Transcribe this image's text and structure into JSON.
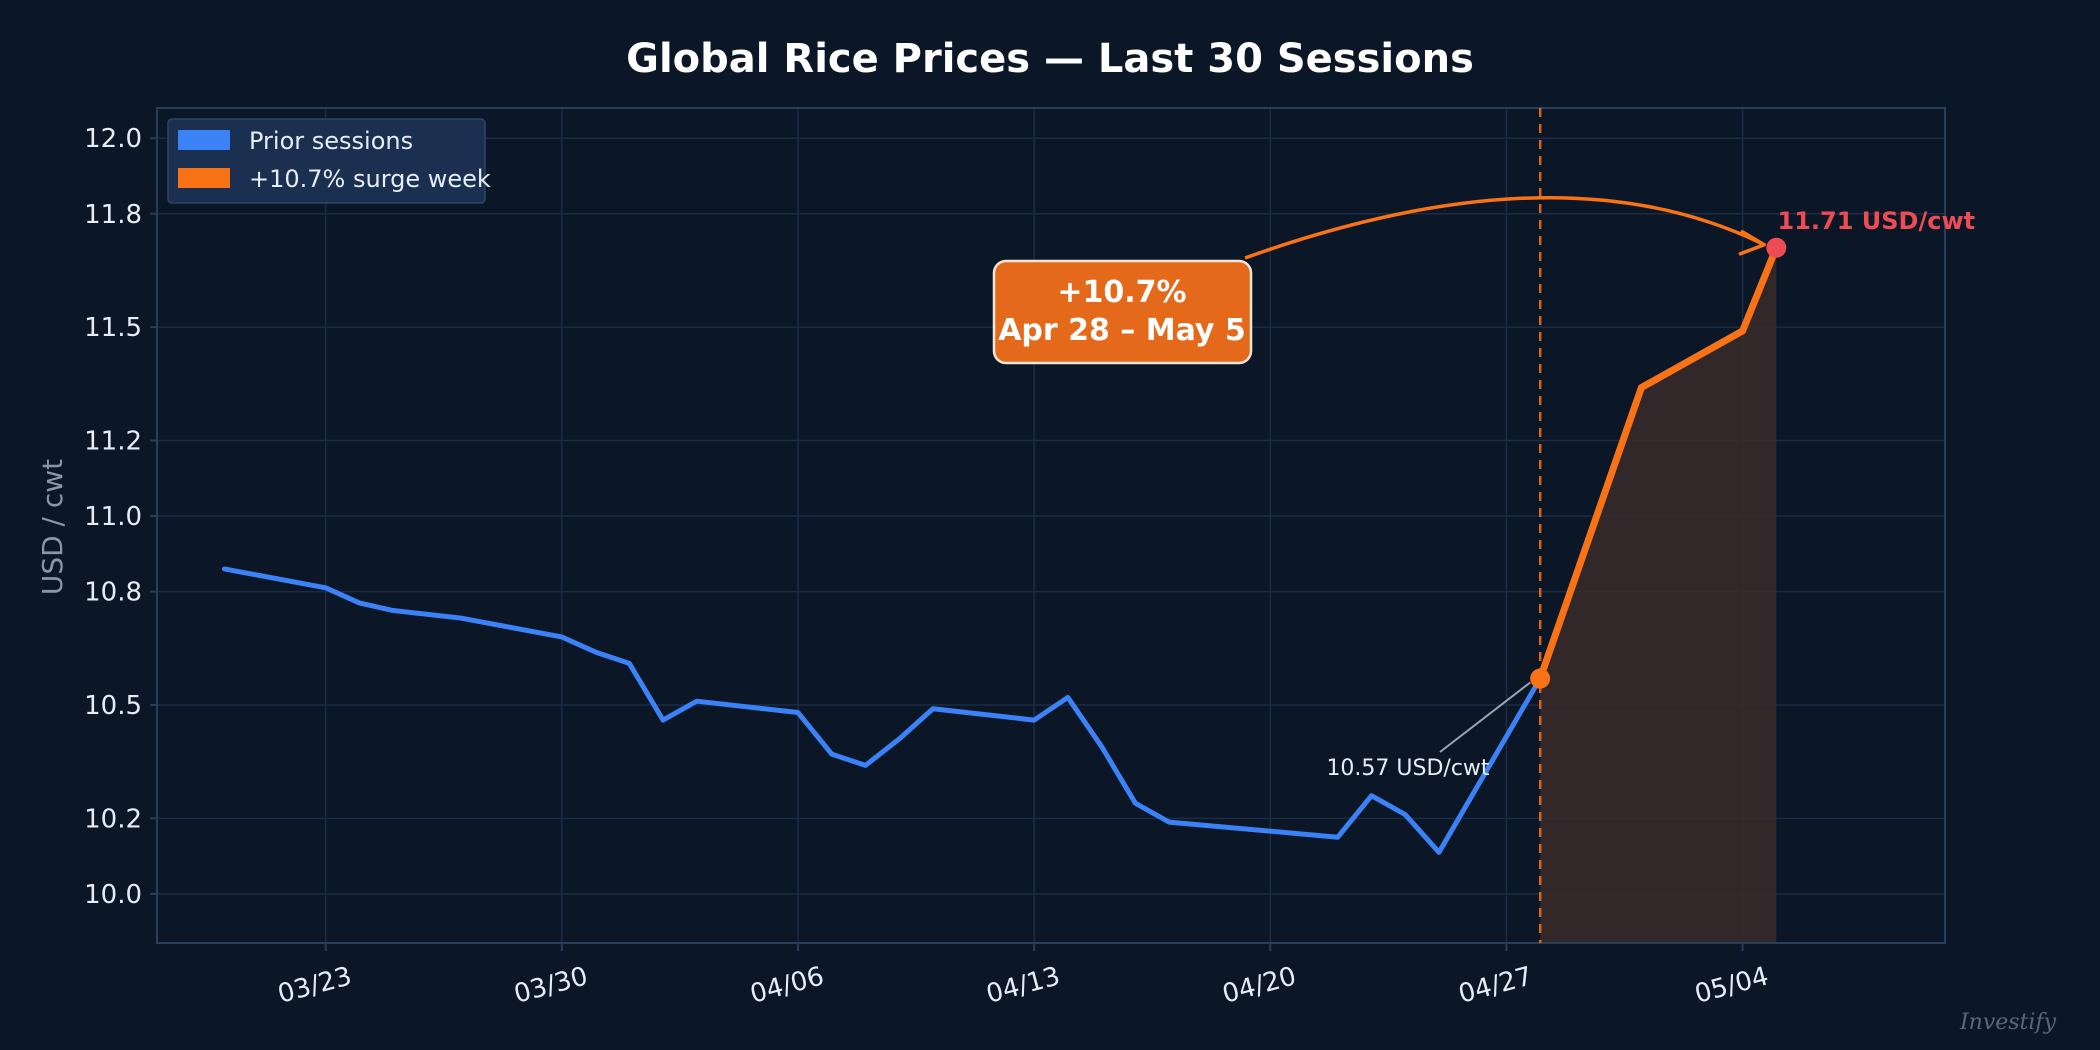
{
  "chart_data": {
    "type": "line",
    "title": "Global Rice Prices — Last 30 Sessions",
    "ylabel": "USD / cwt",
    "xlabel": "",
    "ylim": [
      9.87,
      12.08
    ],
    "yticks": [
      10.0,
      10.2,
      10.5,
      10.8,
      11.0,
      11.2,
      11.5,
      11.8,
      12.0
    ],
    "ytick_labels": [
      "10.0",
      "10.2",
      "10.5",
      "10.8",
      "11.0",
      "11.2",
      "11.5",
      "11.8",
      "12.0"
    ],
    "xlim": [
      "2024-03-18",
      "2024-05-10"
    ],
    "xticks": [
      "2024-03-23",
      "2024-03-30",
      "2024-04-06",
      "2024-04-13",
      "2024-04-20",
      "2024-04-27",
      "2024-05-04"
    ],
    "xtick_labels": [
      "03/23",
      "03/30",
      "04/06",
      "04/13",
      "04/20",
      "04/27",
      "05/04"
    ],
    "grid": true,
    "legend_position": "top-left",
    "legend": [
      "Prior sessions",
      "+10.7% surge week"
    ],
    "series": [
      {
        "name": "Prior sessions",
        "color": "#3b82f6",
        "points": [
          {
            "x": "2024-03-20",
            "y": 10.86
          },
          {
            "x": "2024-03-23",
            "y": 10.81
          },
          {
            "x": "2024-03-24",
            "y": 10.77
          },
          {
            "x": "2024-03-25",
            "y": 10.75
          },
          {
            "x": "2024-03-27",
            "y": 10.73
          },
          {
            "x": "2024-03-30",
            "y": 10.68
          },
          {
            "x": "2024-03-31",
            "y": 10.64
          },
          {
            "x": "2024-04-01",
            "y": 10.61
          },
          {
            "x": "2024-04-02",
            "y": 10.46
          },
          {
            "x": "2024-04-03",
            "y": 10.51
          },
          {
            "x": "2024-04-06",
            "y": 10.48
          },
          {
            "x": "2024-04-07",
            "y": 10.37
          },
          {
            "x": "2024-04-08",
            "y": 10.34
          },
          {
            "x": "2024-04-09",
            "y": 10.41
          },
          {
            "x": "2024-04-10",
            "y": 10.49
          },
          {
            "x": "2024-04-13",
            "y": 10.46
          },
          {
            "x": "2024-04-14",
            "y": 10.52
          },
          {
            "x": "2024-04-15",
            "y": 10.39
          },
          {
            "x": "2024-04-16",
            "y": 10.24
          },
          {
            "x": "2024-04-17",
            "y": 10.19
          },
          {
            "x": "2024-04-22",
            "y": 10.15
          },
          {
            "x": "2024-04-23",
            "y": 10.26
          },
          {
            "x": "2024-04-24",
            "y": 10.21
          },
          {
            "x": "2024-04-25",
            "y": 10.11
          },
          {
            "x": "2024-04-28",
            "y": 10.57
          }
        ]
      },
      {
        "name": "+10.7% surge week",
        "color": "#f97316",
        "points": [
          {
            "x": "2024-04-28",
            "y": 10.57
          },
          {
            "x": "2024-05-01",
            "y": 11.34
          },
          {
            "x": "2024-05-04",
            "y": 11.49
          },
          {
            "x": "2024-05-05",
            "y": 11.71
          }
        ]
      }
    ],
    "annotations": {
      "surge_start_date": "2024-04-28",
      "surge_end_date": "2024-05-05",
      "callout_line1": "+10.7%",
      "callout_line2": "Apr 28 – May 5",
      "start_value_label": "10.57 USD/cwt",
      "end_value_label": "11.71 USD/cwt"
    }
  },
  "colors": {
    "background": "#0b1626",
    "grid": "#1b2c44",
    "frame": "#2a3d5a",
    "prior": "#3b82f6",
    "surge": "#f97316",
    "end_marker": "#ef4b55",
    "callout_fill": "#e5691a",
    "shade": "#3a2a2a"
  },
  "watermark": "Investify"
}
